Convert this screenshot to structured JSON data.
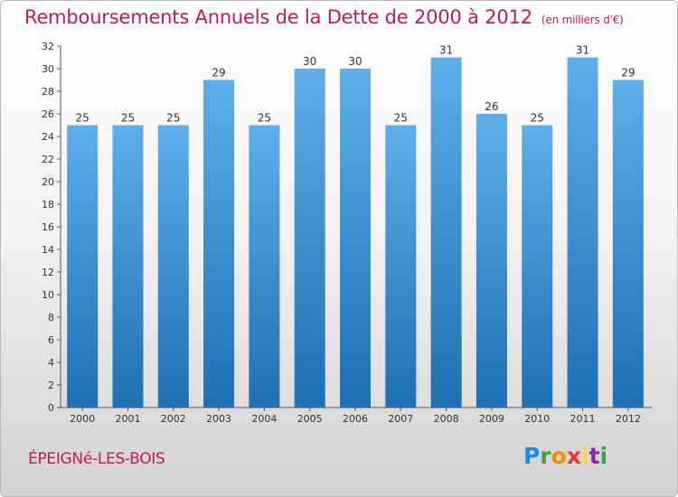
{
  "title": "Remboursements Annuels de la Dette de 2000 à 2012",
  "unit_label": "(en milliers d'€)",
  "commune": "ÉPEIGNé-LES-BOIS",
  "logo": {
    "letters": [
      "P",
      "r",
      "o",
      "x",
      "i",
      "t",
      "i"
    ],
    "colors": [
      "#1e88e5",
      "#43a047",
      "#fb8c00",
      "#e53935",
      "#fdd835",
      "#8e24aa",
      "#43a047"
    ]
  },
  "colors": {
    "bar_top": "#5eaeea",
    "bar_bottom": "#1f6fb4",
    "title": "#c2185b"
  },
  "chart_data": {
    "type": "bar",
    "categories": [
      "2000",
      "2001",
      "2002",
      "2003",
      "2004",
      "2005",
      "2006",
      "2007",
      "2008",
      "2009",
      "2010",
      "2011",
      "2012"
    ],
    "values": [
      25,
      25,
      25,
      29,
      25,
      30,
      30,
      25,
      31,
      26,
      25,
      31,
      29
    ],
    "ylim": [
      0,
      32
    ],
    "yticks": [
      0,
      2,
      4,
      6,
      8,
      10,
      12,
      14,
      16,
      18,
      20,
      22,
      24,
      26,
      28,
      30,
      32
    ],
    "grid": false,
    "data_labels": true
  }
}
